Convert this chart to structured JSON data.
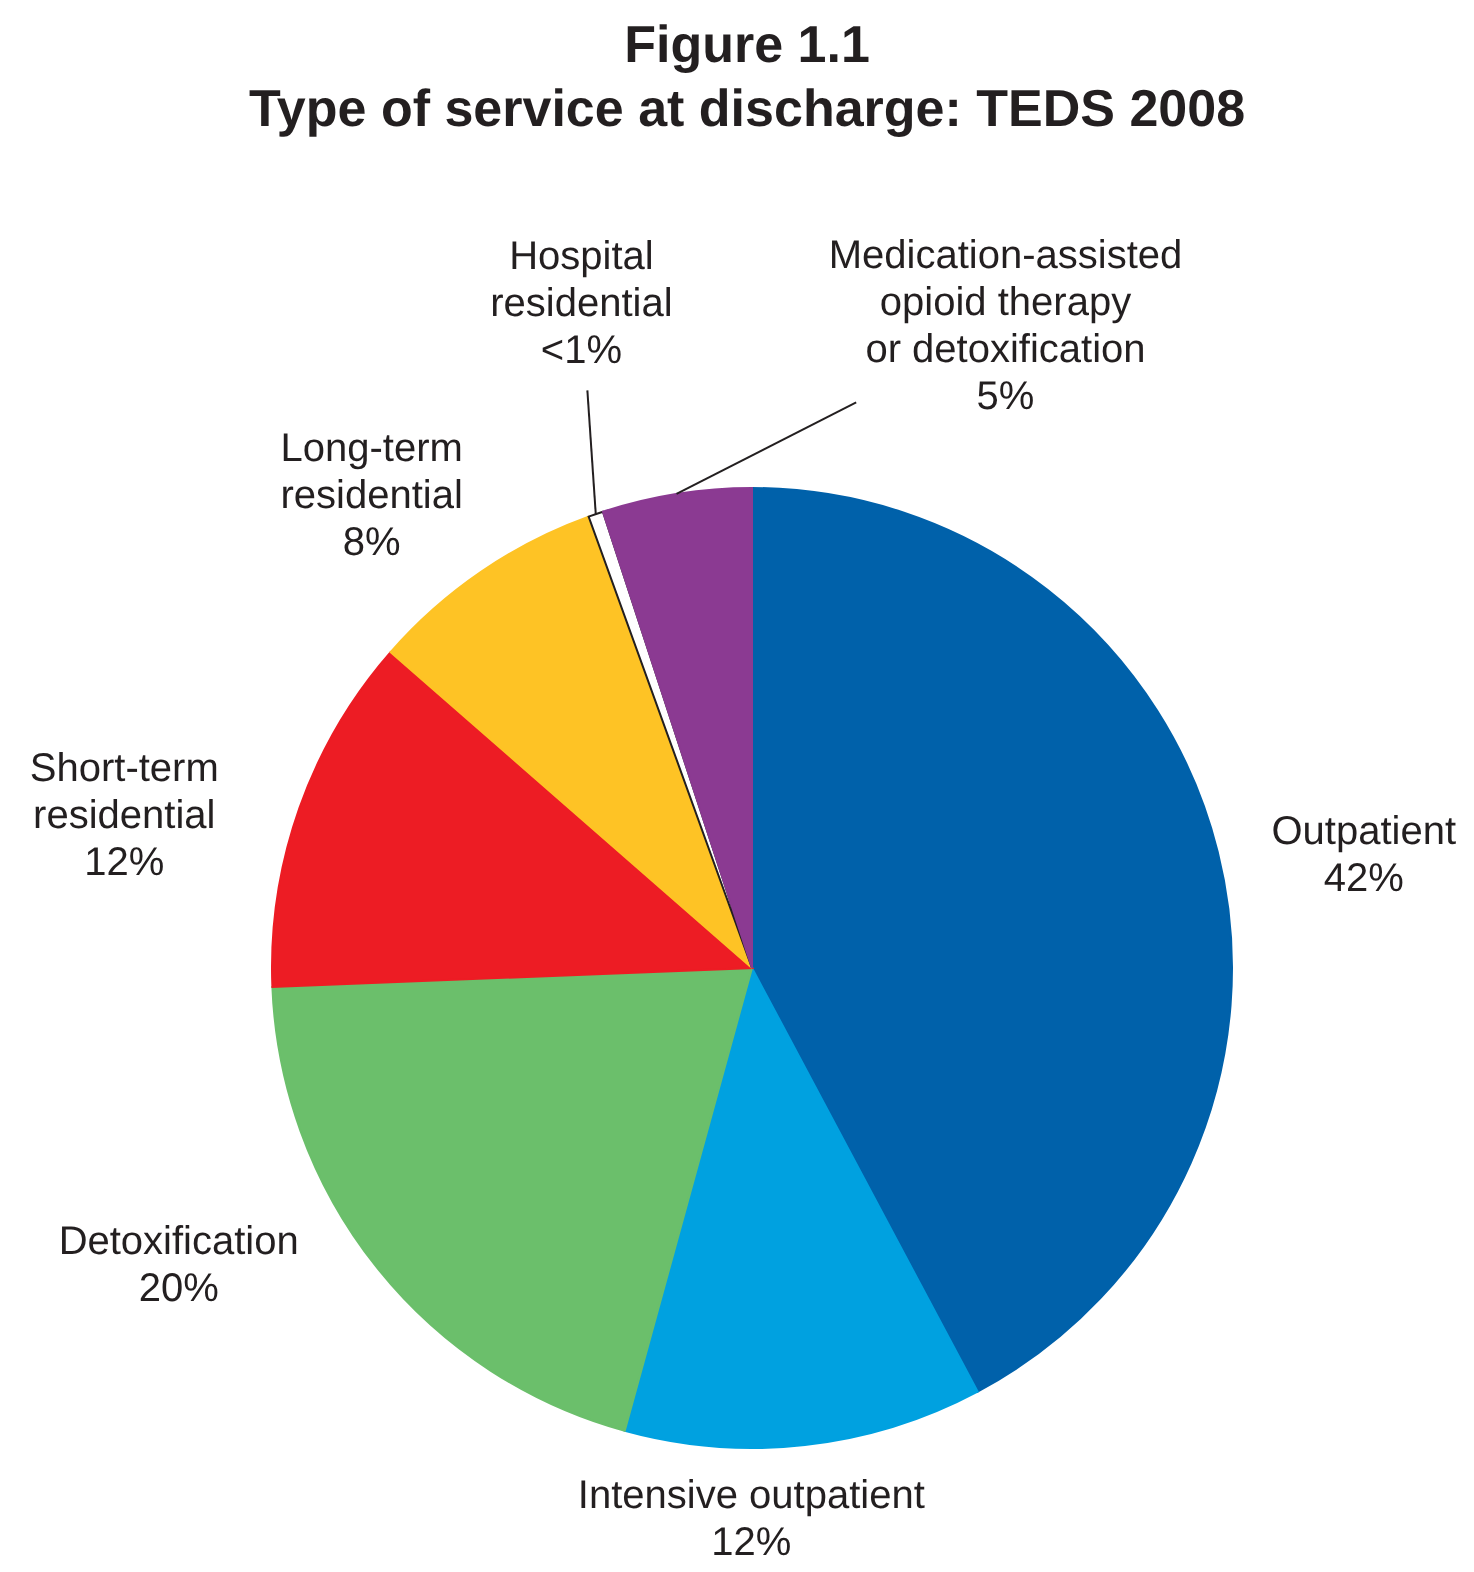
{
  "chart_data": {
    "type": "pie",
    "title": "Figure 1.1",
    "subtitle": "Type of service at discharge: TEDS 2008",
    "categories": [
      "Outpatient",
      "Intensive outpatient",
      "Detoxification",
      "Short-term residential",
      "Long-term residential",
      "Hospital residential",
      "Medication-assisted opioid therapy or detoxification"
    ],
    "values": [
      42,
      12,
      20,
      12,
      8,
      0.5,
      5
    ],
    "value_labels": [
      "42%",
      "12%",
      "20%",
      "12%",
      "8%",
      "<1%",
      "5%"
    ],
    "colors": [
      "#0061aa",
      "#00a1e0",
      "#6bbf6b",
      "#ed1c24",
      "#fec325",
      "#ffffff",
      "#8b3a92"
    ]
  }
}
